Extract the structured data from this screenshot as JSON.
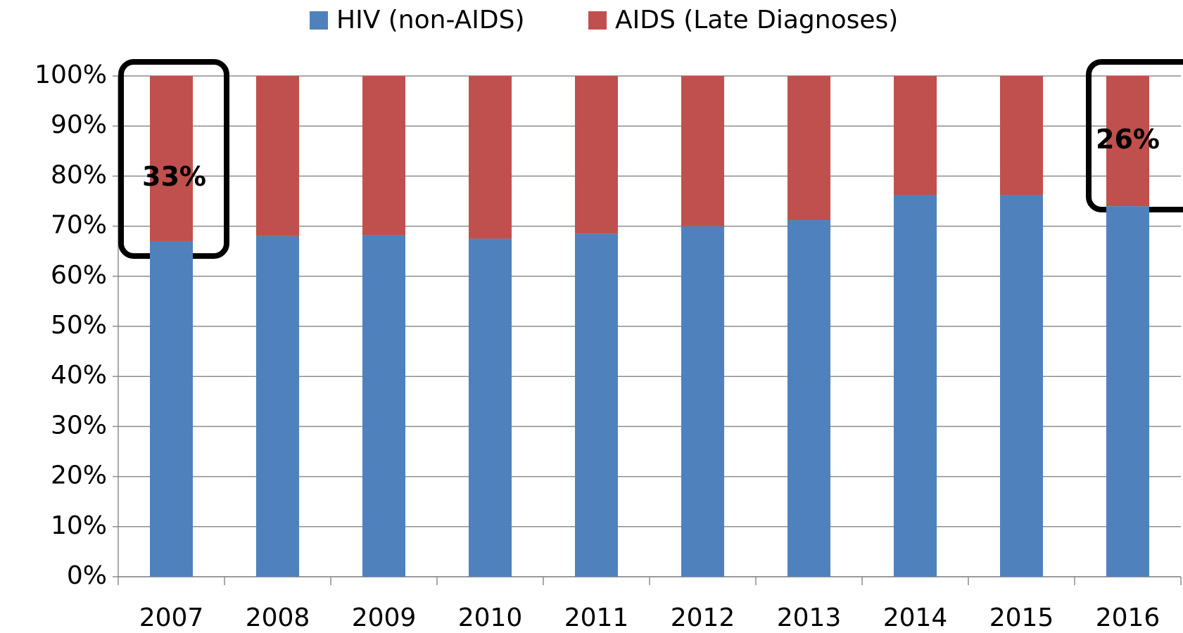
{
  "chart_data": {
    "type": "stacked_bar",
    "categories": [
      "2007",
      "2008",
      "2009",
      "2010",
      "2011",
      "2012",
      "2013",
      "2014",
      "2015",
      "2016"
    ],
    "series": [
      {
        "name": "HIV (non-AIDS)",
        "color": "#4f81bd",
        "values": [
          67,
          68,
          68.2,
          67.5,
          68.5,
          70,
          71.2,
          76.2,
          76.2,
          74
        ]
      },
      {
        "name": "AIDS (Late Diagnoses)",
        "color": "#c0504d",
        "values": [
          33,
          32,
          31.8,
          32.5,
          31.5,
          30,
          28.8,
          23.8,
          23.8,
          26
        ],
        "value_labels": [
          "33%",
          null,
          null,
          null,
          null,
          null,
          null,
          null,
          null,
          "26%"
        ]
      }
    ],
    "ylim": [
      0,
      100
    ],
    "yticks": [
      {
        "value": 0,
        "label": "0%"
      },
      {
        "value": 10,
        "label": "10%"
      },
      {
        "value": 20,
        "label": "20%"
      },
      {
        "value": 30,
        "label": "30%"
      },
      {
        "value": 40,
        "label": "40%"
      },
      {
        "value": 50,
        "label": "50%"
      },
      {
        "value": 60,
        "label": "60%"
      },
      {
        "value": 70,
        "label": "70%"
      },
      {
        "value": 80,
        "label": "80%"
      },
      {
        "value": 90,
        "label": "90%"
      },
      {
        "value": 100,
        "label": "100%"
      }
    ],
    "grid": true,
    "legend": "top"
  }
}
